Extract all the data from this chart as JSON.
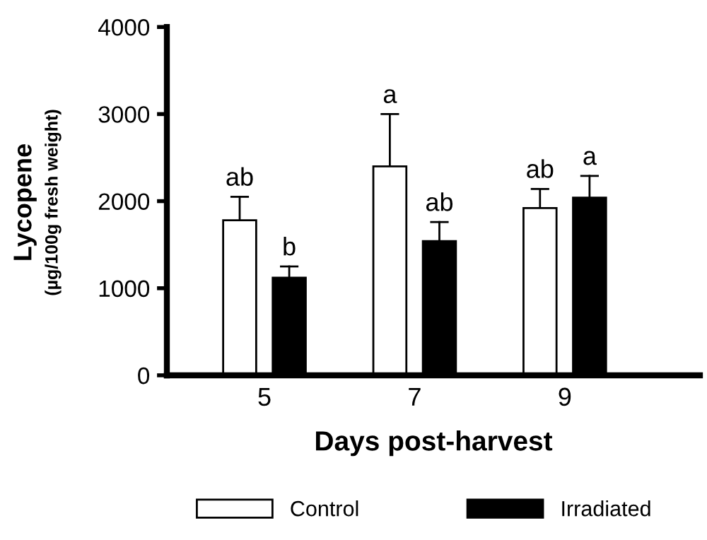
{
  "chart_data": {
    "type": "bar",
    "xlabel": "Days post-harvest",
    "ylabel": "Lycopene\n(µg/100g fresh weight)",
    "categories": [
      "5",
      "7",
      "9"
    ],
    "series": [
      {
        "name": "Control",
        "color": "#ffffff",
        "values": [
          1780,
          2400,
          1920
        ],
        "errors": [
          [
            1780,
            2050
          ],
          [
            2400,
            3000
          ],
          [
            1920,
            2140
          ]
        ]
      },
      {
        "name": "Irradiated",
        "color": "#000000",
        "values": [
          1120,
          1540,
          2040
        ],
        "errors": [
          [
            1120,
            1250
          ],
          [
            1540,
            1760
          ],
          [
            2040,
            2290
          ]
        ]
      }
    ],
    "annotations": [
      "ab",
      "b",
      "a",
      "ab",
      "ab",
      "a"
    ],
    "ylim": [
      0,
      4000
    ],
    "yticks": [
      0,
      1000,
      2000,
      3000,
      4000
    ],
    "grid": false,
    "legend": "bottom"
  }
}
